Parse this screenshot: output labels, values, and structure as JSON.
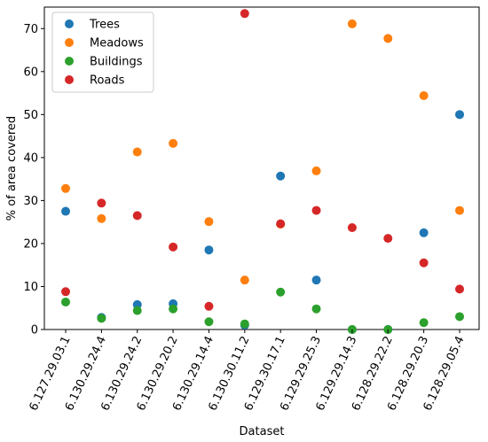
{
  "chart_data": {
    "type": "scatter",
    "title": "",
    "xlabel": "Dataset",
    "ylabel": "% of area covered",
    "ylim": [
      0,
      75
    ],
    "yticks": [
      0,
      10,
      20,
      30,
      40,
      50,
      60,
      70
    ],
    "grid": false,
    "legend_position": "top-left",
    "categories": [
      "6.127.29.03.1",
      "6.130.29.24.4",
      "6.130.29.24.2",
      "6.130.29.20.2",
      "6.130.29.14.4",
      "6.130.30.11.2",
      "6.129.30.17.1",
      "6.129.29.25.3",
      "6.129.29.14.3",
      "6.128.29.22.2",
      "6.128.29.20.3",
      "6.128.29.05.4"
    ],
    "series": [
      {
        "name": "Trees",
        "color": "#1f77b4",
        "values": [
          27.5,
          2.8,
          5.8,
          6.0,
          18.5,
          1.0,
          35.7,
          11.5,
          0.0,
          0.0,
          22.5,
          50.0
        ]
      },
      {
        "name": "Meadows",
        "color": "#ff7f0e",
        "values": [
          32.8,
          25.8,
          41.3,
          43.3,
          25.1,
          11.5,
          24.5,
          36.9,
          71.1,
          67.7,
          54.4,
          27.7
        ]
      },
      {
        "name": "Buildings",
        "color": "#2ca02c",
        "values": [
          6.4,
          2.6,
          4.4,
          4.8,
          1.8,
          1.3,
          8.7,
          4.8,
          0.0,
          0.0,
          1.6,
          3.0
        ]
      },
      {
        "name": "Roads",
        "color": "#d62728",
        "values": [
          8.8,
          29.4,
          26.5,
          19.2,
          5.4,
          73.5,
          24.6,
          27.7,
          23.7,
          21.2,
          15.5,
          9.4
        ]
      }
    ]
  }
}
